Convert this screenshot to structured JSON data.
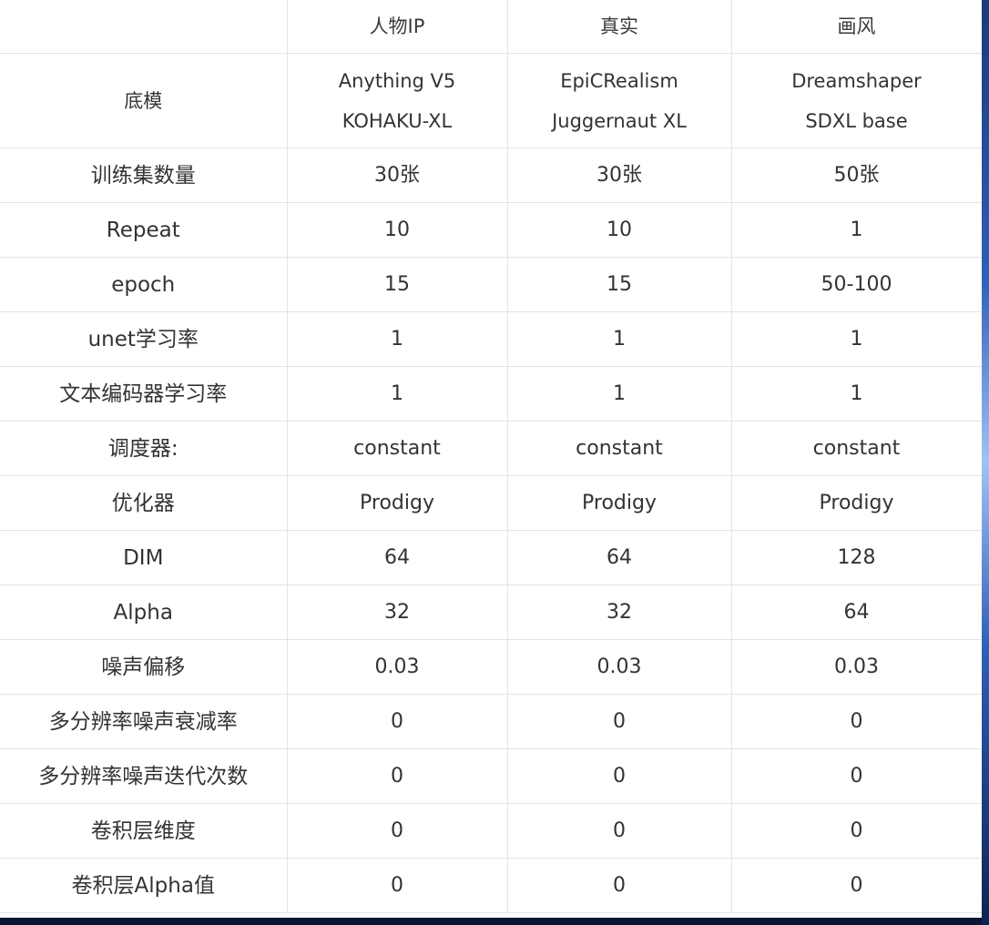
{
  "table": {
    "headers": [
      "",
      "人物IP",
      "真实",
      "画风"
    ],
    "base_model": {
      "label": "底模",
      "values": [
        [
          "Anything V5",
          "KOHAKU-XL"
        ],
        [
          "EpiCRealism",
          "Juggernaut XL"
        ],
        [
          "Dreamshaper",
          "SDXL base"
        ]
      ]
    },
    "rows": [
      {
        "label": "训练集数量",
        "values": [
          "30张",
          "30张",
          "50张"
        ]
      },
      {
        "label": "Repeat",
        "values": [
          "10",
          "10",
          "1"
        ]
      },
      {
        "label": "epoch",
        "values": [
          "15",
          "15",
          "50-100"
        ]
      },
      {
        "label": "unet学习率",
        "values": [
          "1",
          "1",
          "1"
        ]
      },
      {
        "label": "文本编码器学习率",
        "values": [
          "1",
          "1",
          "1"
        ]
      },
      {
        "label": "调度器:",
        "values": [
          "constant",
          "constant",
          "constant"
        ]
      },
      {
        "label": "优化器",
        "values": [
          "Prodigy",
          "Prodigy",
          "Prodigy"
        ]
      },
      {
        "label": "DIM",
        "values": [
          "64",
          "64",
          "128"
        ]
      },
      {
        "label": "Alpha",
        "values": [
          "32",
          "32",
          "64"
        ]
      },
      {
        "label": "噪声偏移",
        "values": [
          "0.03",
          "0.03",
          "0.03"
        ]
      },
      {
        "label": "多分辨率噪声衰减率",
        "values": [
          "0",
          "0",
          "0"
        ]
      },
      {
        "label": "多分辨率噪声迭代次数",
        "values": [
          "0",
          "0",
          "0"
        ]
      },
      {
        "label": "卷积层维度",
        "values": [
          "0",
          "0",
          "0"
        ]
      },
      {
        "label": "卷积层Alpha值",
        "values": [
          "0",
          "0",
          "0"
        ]
      }
    ]
  }
}
